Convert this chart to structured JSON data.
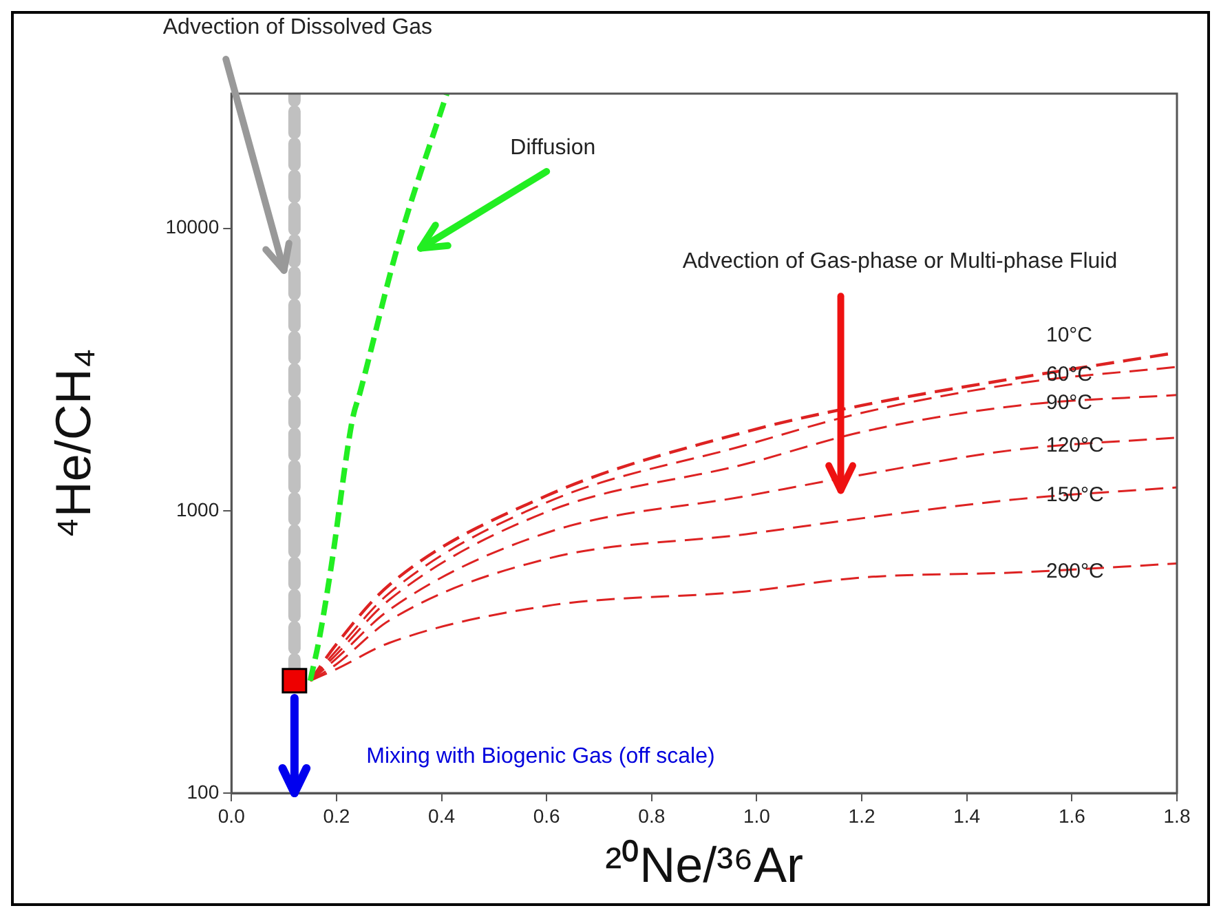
{
  "chart_data": {
    "type": "line",
    "xlabel": "²⁰Ne/³⁶Ar",
    "ylabel": "⁴He/CH₄",
    "xlim": [
      0,
      1.8
    ],
    "xticks": [
      {
        "value": 0,
        "label": "0.0"
      },
      0.2,
      0.4,
      0.6,
      0.8,
      {
        "value": 1,
        "label": "1.0"
      },
      1.2,
      1.4,
      1.6,
      1.8
    ],
    "ylim": [
      100,
      30000
    ],
    "yticks": [
      100,
      1000,
      10000
    ],
    "log": "y",
    "grid": false,
    "legend": false,
    "annotations": [
      "Advection of Dissolved Gas",
      "Diffusion",
      "Advection of Gas-phase or Multi-phase Fluid",
      "Mixing with Biogenic Gas (off scale)"
    ],
    "series": [
      {
        "color": "#c0c0c0",
        "line_style": "dashed",
        "x": [
          0.12,
          0.12
        ],
        "values": [
          250,
          30000
        ]
      },
      {
        "color": "#22ee22",
        "line_style": "dashed",
        "x": [
          0.15,
          0.167,
          0.19,
          0.23,
          0.245,
          0.317,
          0.41
        ],
        "values": [
          250,
          350,
          635,
          2090,
          2630,
          8700,
          30000
        ]
      },
      {
        "name": "10°C",
        "color": "#dd2222",
        "line_style": "dashed",
        "x": [
          0.15,
          0.2,
          0.3,
          0.6,
          0.98,
          1.2,
          1.5,
          1.8
        ],
        "values": [
          250,
          337,
          545,
          1130,
          1905,
          2360,
          2960,
          3630
        ]
      },
      {
        "name": "60°C",
        "color": "#dd2222",
        "line_style": "dashed",
        "x": [
          0.15,
          0.2,
          0.3,
          0.6,
          0.98,
          1.2,
          1.5,
          1.8
        ],
        "values": [
          250,
          320,
          510,
          1070,
          1710,
          2220,
          2830,
          3230
        ]
      },
      {
        "name": "90°C",
        "color": "#dd2222",
        "line_style": "dashed",
        "x": [
          0.15,
          0.2,
          0.3,
          0.6,
          0.98,
          1.2,
          1.5,
          1.8
        ],
        "values": [
          250,
          310,
          483,
          990,
          1465,
          1900,
          2360,
          2570
        ]
      },
      {
        "name": "120°C",
        "color": "#dd2222",
        "line_style": "dashed",
        "x": [
          0.15,
          0.2,
          0.3,
          0.6,
          0.98,
          1.2,
          1.5,
          1.8
        ],
        "values": [
          250,
          300,
          445,
          835,
          1127,
          1340,
          1650,
          1815
        ]
      },
      {
        "name": "150°C",
        "color": "#dd2222",
        "line_style": "dashed",
        "x": [
          0.15,
          0.2,
          0.3,
          0.6,
          0.98,
          1.2,
          1.5,
          1.8
        ],
        "values": [
          250,
          286,
          408,
          675,
          826,
          940,
          1100,
          1210
        ]
      },
      {
        "name": "200°C",
        "color": "#dd2222",
        "line_style": "dashed",
        "x": [
          0.15,
          0.2,
          0.3,
          0.6,
          0.98,
          1.2,
          1.5,
          1.8
        ],
        "values": [
          250,
          275,
          340,
          460,
          518,
          580,
          605,
          650
        ]
      },
      {
        "type": "scatter",
        "marker": "square",
        "color": "#ee0000",
        "x": [
          0.12
        ],
        "values": [
          250
        ]
      }
    ]
  }
}
